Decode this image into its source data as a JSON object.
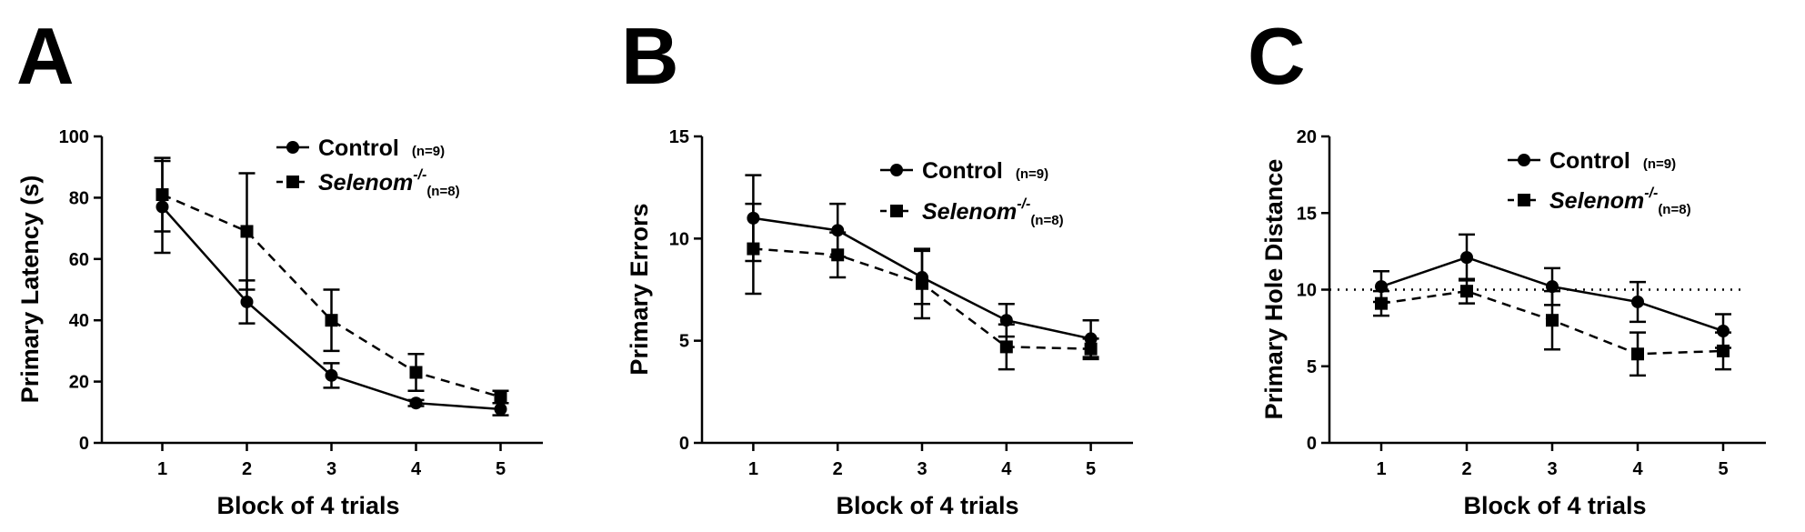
{
  "chart_data": [
    {
      "type": "line",
      "panel": "A",
      "xlabel": "Block of 4 trials",
      "ylabel": "Primary Latency (s)",
      "categories": [
        "1",
        "2",
        "3",
        "4",
        "5"
      ],
      "ylim": [
        0,
        100
      ],
      "yticks": [
        "0",
        "20",
        "40",
        "60",
        "80",
        "100"
      ],
      "legend_position": "top-right",
      "series": [
        {
          "name": "Control",
          "n": "(n=9)",
          "marker": "circle",
          "line": "solid",
          "values": [
            77,
            46,
            22,
            13,
            11
          ],
          "error": [
            15,
            7,
            4,
            1,
            2
          ]
        },
        {
          "name": "Selenom",
          "sup": "-/-",
          "n": "(n=8)",
          "marker": "square",
          "line": "dashed",
          "values": [
            81,
            69,
            40,
            23,
            15
          ],
          "error": [
            12,
            19,
            10,
            6,
            2
          ]
        }
      ]
    },
    {
      "type": "line",
      "panel": "B",
      "xlabel": "Block of 4 trials",
      "ylabel": "Primary Errors",
      "categories": [
        "1",
        "2",
        "3",
        "4",
        "5"
      ],
      "ylim": [
        0,
        15
      ],
      "yticks": [
        "0",
        "5",
        "10",
        "15"
      ],
      "legend_position": "top-right",
      "series": [
        {
          "name": "Control",
          "n": "(n=9)",
          "marker": "circle",
          "line": "solid",
          "values": [
            11.0,
            10.4,
            8.1,
            6.0,
            5.1
          ],
          "error": [
            2.1,
            1.3,
            1.3,
            0.8,
            0.9
          ]
        },
        {
          "name": "Selenom",
          "sup": "-/-",
          "n": "(n=8)",
          "marker": "square",
          "line": "dashed",
          "values": [
            9.5,
            9.2,
            7.8,
            4.7,
            4.6
          ],
          "error": [
            2.2,
            1.1,
            1.7,
            1.1,
            0.5
          ]
        }
      ]
    },
    {
      "type": "line",
      "panel": "C",
      "xlabel": "Block of 4 trials",
      "ylabel": "Primary Hole Distance",
      "categories": [
        "1",
        "2",
        "3",
        "4",
        "5"
      ],
      "ylim": [
        0,
        20
      ],
      "yticks": [
        "0",
        "5",
        "10",
        "15",
        "20"
      ],
      "reference_line": 10,
      "legend_position": "top-right",
      "series": [
        {
          "name": "Control",
          "n": "(n=9)",
          "marker": "circle",
          "line": "solid",
          "values": [
            10.2,
            12.1,
            10.2,
            9.2,
            7.3
          ],
          "error": [
            1.0,
            1.5,
            1.2,
            1.3,
            1.1
          ]
        },
        {
          "name": "Selenom",
          "sup": "-/-",
          "n": "(n=8)",
          "marker": "square",
          "line": "dashed",
          "values": [
            9.1,
            9.9,
            8.0,
            5.8,
            6.0
          ],
          "error": [
            0.8,
            0.8,
            1.9,
            1.4,
            1.2
          ]
        }
      ]
    }
  ]
}
